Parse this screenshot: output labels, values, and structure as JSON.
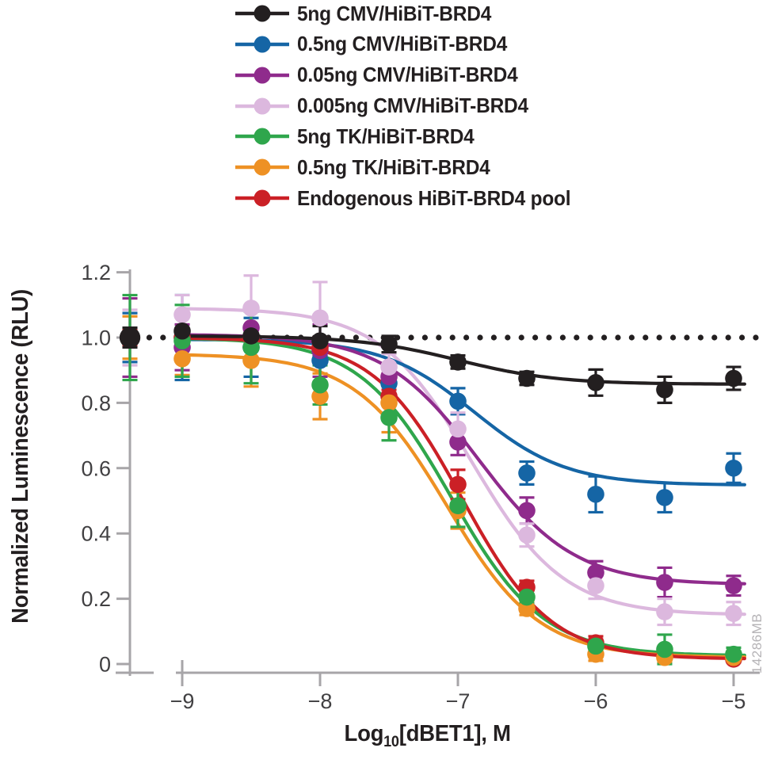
{
  "chart_data": {
    "type": "scatter",
    "subtype": "dose-response-curves",
    "title": "",
    "xlabel_prefix": "Log",
    "xlabel_sub": "10",
    "xlabel_suffix": "[dBET1], M",
    "ylabel": "Normalized Luminescence (RLU)",
    "watermark": "14286MB",
    "x_ticks": [
      {
        "value": -9,
        "label": "−9"
      },
      {
        "value": -8,
        "label": "−8"
      },
      {
        "value": -7,
        "label": "−7"
      },
      {
        "value": -6,
        "label": "−6"
      },
      {
        "value": -5,
        "label": "−5"
      }
    ],
    "y_ticks": [
      {
        "value": 0,
        "label": "0"
      },
      {
        "value": 0.2,
        "label": "0.2"
      },
      {
        "value": 0.4,
        "label": "0.4"
      },
      {
        "value": 0.6,
        "label": "0.6"
      },
      {
        "value": 0.8,
        "label": "0.8"
      },
      {
        "value": 1.0,
        "label": "1.0"
      },
      {
        "value": 1.2,
        "label": "1.2"
      }
    ],
    "xlim": [
      -9.45,
      -4.85
    ],
    "ylim": [
      0,
      1.2
    ],
    "grid": false,
    "legend_position": "top-left",
    "reference_line": {
      "y": 1.0,
      "style": "dotted",
      "color": "#231f20"
    },
    "axis_color": "#a7a5a8",
    "tick_label_color": "#414042",
    "x": [
      -9,
      -8.5,
      -8,
      -7.5,
      -7,
      -6.5,
      -6,
      -5.5,
      -5
    ],
    "control_note": "untreated control points plotted on the y-axis at normalized value 1.0",
    "series": [
      {
        "id": "cmv5",
        "label": "5ng CMV/HiBiT-BRD4",
        "color": "#231f20",
        "values": [
          1.02,
          1.005,
          0.99,
          0.98,
          0.925,
          0.875,
          0.862,
          0.84,
          0.875
        ],
        "errors": [
          0.045,
          0.03,
          0.045,
          0.025,
          0.02,
          0.02,
          0.04,
          0.04,
          0.035
        ],
        "control": {
          "y": 1.0,
          "err": 0.03
        },
        "fit": {
          "top": 1.005,
          "bottom": 0.857,
          "logec50": -7.0,
          "hill": 1.2
        }
      },
      {
        "id": "cmv05",
        "label": "0.5ng CMV/HiBiT-BRD4",
        "color": "#1565a5",
        "values": [
          1.0,
          0.97,
          0.93,
          0.86,
          0.805,
          0.585,
          0.52,
          0.51,
          0.6
        ],
        "errors": [
          0.13,
          0.09,
          0.07,
          0.03,
          0.04,
          0.035,
          0.055,
          0.045,
          0.045
        ],
        "control": {
          "y": 1.0,
          "err": 0.075
        },
        "fit": {
          "top": 0.995,
          "bottom": 0.548,
          "logec50": -6.88,
          "hill": 1.3
        }
      },
      {
        "id": "cmv005",
        "label": "0.05ng CMV/HiBiT-BRD4",
        "color": "#8f2b8c",
        "values": [
          0.97,
          1.03,
          0.96,
          0.88,
          0.68,
          0.47,
          0.28,
          0.25,
          0.24
        ],
        "errors": [
          0.07,
          0.055,
          0.08,
          0.03,
          0.04,
          0.04,
          0.035,
          0.045,
          0.03
        ],
        "control": {
          "y": 1.0,
          "err": 0.12
        },
        "fit": {
          "top": 1.01,
          "bottom": 0.243,
          "logec50": -6.85,
          "hill": 1.25
        }
      },
      {
        "id": "cmv0005",
        "label": "0.005ng CMV/HiBiT-BRD4",
        "color": "#dcb8de",
        "values": [
          1.07,
          1.09,
          1.06,
          0.91,
          0.72,
          0.395,
          0.24,
          0.16,
          0.155
        ],
        "errors": [
          0.06,
          0.1,
          0.11,
          0.04,
          0.05,
          0.035,
          0.04,
          0.04,
          0.035
        ],
        "control": {
          "y": 1.0,
          "err": 0.085
        },
        "fit": {
          "top": 1.09,
          "bottom": 0.15,
          "logec50": -6.9,
          "hill": 1.3
        }
      },
      {
        "id": "tk5",
        "label": "5ng TK/HiBiT-BRD4",
        "color": "#2fa64c",
        "values": [
          0.99,
          0.97,
          0.855,
          0.755,
          0.485,
          0.205,
          0.055,
          0.045,
          0.03
        ],
        "errors": [
          0.11,
          0.11,
          0.06,
          0.07,
          0.065,
          0.02,
          0.02,
          0.045,
          0.02
        ],
        "control": {
          "y": 1.0,
          "err": 0.13
        },
        "fit": {
          "top": 1.0,
          "bottom": 0.025,
          "logec50": -7.05,
          "hill": 1.3
        }
      },
      {
        "id": "tk05",
        "label": "0.5ng TK/HiBiT-BRD4",
        "color": "#ee9124",
        "values": [
          0.935,
          0.93,
          0.82,
          0.8,
          0.47,
          0.17,
          0.03,
          0.02,
          0.02
        ],
        "errors": [
          0.05,
          0.08,
          0.07,
          0.09,
          0.055,
          0.02,
          0.02,
          0.015,
          0.015
        ],
        "control": {
          "y": 1.0,
          "err": 0.065
        },
        "fit": {
          "top": 0.95,
          "bottom": 0.02,
          "logec50": -7.08,
          "hill": 1.3
        }
      },
      {
        "id": "endo",
        "label": "Endogenous HiBiT-BRD4 pool",
        "color": "#cb2026",
        "values": [
          1.0,
          1.0,
          0.97,
          0.82,
          0.55,
          0.235,
          0.065,
          0.025,
          0.015
        ],
        "errors": [
          0.02,
          0.02,
          0.03,
          0.02,
          0.045,
          0.02,
          0.02,
          0.01,
          0.01
        ],
        "control": {
          "y": 1.0,
          "err": 0.025
        },
        "fit": {
          "top": 1.0,
          "bottom": 0.015,
          "logec50": -6.97,
          "hill": 1.35
        }
      }
    ]
  }
}
